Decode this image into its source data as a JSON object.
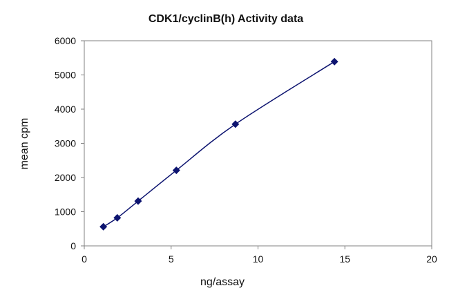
{
  "chart_data": {
    "type": "scatter",
    "title": "CDK1/cyclinB(h) Activity data",
    "xlabel": "ng/assay",
    "ylabel": "mean cpm",
    "xlim": [
      0,
      20
    ],
    "ylim": [
      0,
      6000
    ],
    "x_ticks": [
      0,
      5,
      10,
      15,
      20
    ],
    "y_ticks": [
      0,
      1000,
      2000,
      3000,
      4000,
      5000,
      6000
    ],
    "x_tick_labels": [
      "0",
      "5",
      "10",
      "15",
      "20"
    ],
    "y_tick_labels": [
      "0",
      "1000",
      "2000",
      "3000",
      "4000",
      "5000",
      "6000"
    ],
    "grid": false,
    "legend": "none",
    "series": [
      {
        "marker": "diamond",
        "line": "smooth",
        "color": "#0d1470",
        "x": [
          1.1,
          1.9,
          3.1,
          5.3,
          8.7,
          14.4
        ],
        "y": [
          560,
          820,
          1310,
          2210,
          3560,
          5390
        ]
      }
    ]
  }
}
